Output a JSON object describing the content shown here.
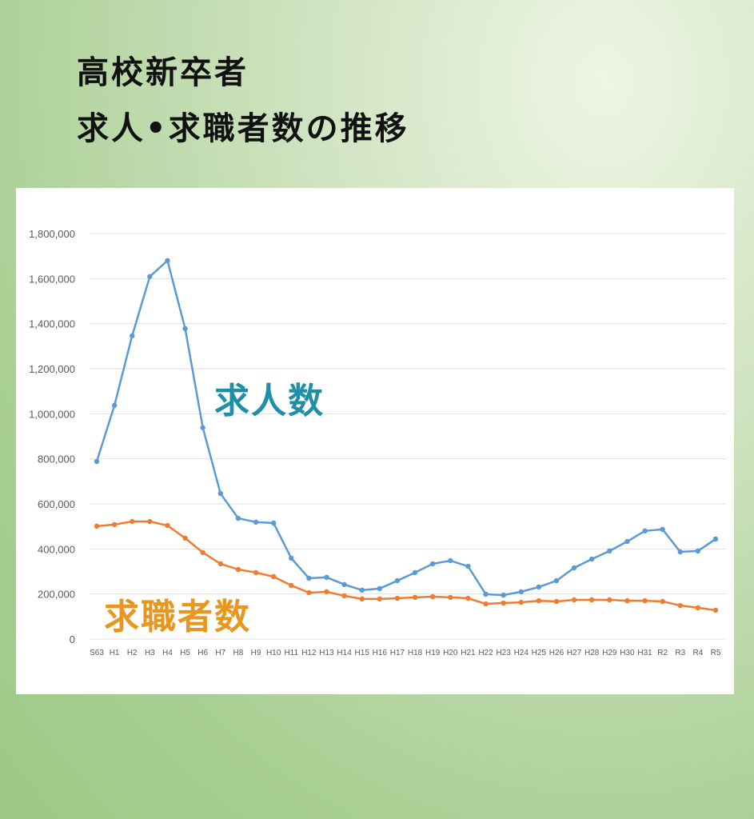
{
  "title_line1": "高校新卒者",
  "title_line2": "求人•求職者数の推移",
  "chart_data": {
    "type": "line",
    "categories": [
      "S63",
      "H1",
      "H2",
      "H3",
      "H4",
      "H5",
      "H6",
      "H7",
      "H8",
      "H9",
      "H10",
      "H11",
      "H12",
      "H13",
      "H14",
      "H15",
      "H16",
      "H17",
      "H18",
      "H19",
      "H20",
      "H21",
      "H22",
      "H23",
      "H24",
      "H25",
      "H26",
      "H27",
      "H28",
      "H29",
      "H30",
      "H31",
      "R2",
      "R3",
      "R4",
      "R5"
    ],
    "ylim": [
      0,
      1800000
    ],
    "yticks": [
      0,
      200000,
      400000,
      600000,
      800000,
      1000000,
      1200000,
      1400000,
      1600000,
      1800000
    ],
    "ytick_labels": [
      "0",
      "200,000",
      "400,000",
      "600,000",
      "800,000",
      "1,000,000",
      "1,200,000",
      "1,400,000",
      "1,600,000",
      "1,800,000"
    ],
    "grid": true,
    "series": [
      {
        "name": "求人数",
        "color": "#5b9bd5",
        "label_color": "#1f8fa8",
        "values": [
          788000,
          1037000,
          1346000,
          1609000,
          1680000,
          1378000,
          938000,
          646000,
          536000,
          519000,
          515000,
          359000,
          270000,
          274000,
          242000,
          217000,
          224000,
          259000,
          295000,
          334000,
          348000,
          323000,
          199000,
          195000,
          210000,
          231000,
          259000,
          316000,
          355000,
          391000,
          433000,
          480000,
          487000,
          387000,
          391000,
          444000
        ]
      },
      {
        "name": "求職者数",
        "color": "#ed7d31",
        "label_color": "#e8961e",
        "values": [
          501000,
          508000,
          522000,
          522000,
          504000,
          448000,
          384000,
          334000,
          309000,
          295000,
          277000,
          238000,
          206000,
          210000,
          192000,
          178000,
          178000,
          181000,
          185000,
          188000,
          185000,
          181000,
          156000,
          160000,
          163000,
          170000,
          167000,
          174000,
          174000,
          174000,
          170000,
          170000,
          167000,
          149000,
          139000,
          128000
        ]
      }
    ]
  }
}
